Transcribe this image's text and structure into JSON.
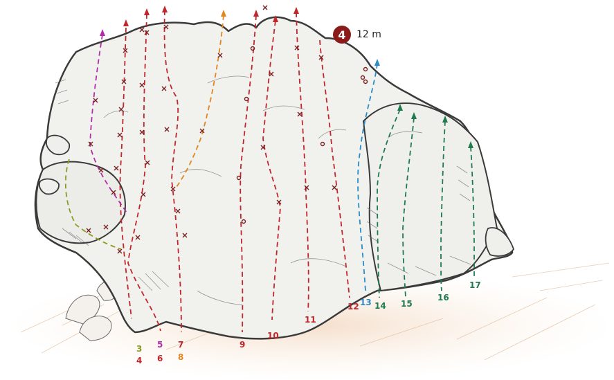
{
  "boulder": {
    "number": "4",
    "height": "12 m"
  },
  "colors": {
    "red": "#c0262b",
    "purple": "#b02fa8",
    "orange": "#e0871f",
    "olive": "#8f9a22",
    "blue": "#2a8cc6",
    "green": "#1f7a4f",
    "badge": "#8b1a1a",
    "outline": "#3a3a3a",
    "bolt": "#7a1f1f"
  },
  "routes": [
    {
      "number": "3",
      "color_key": "olive"
    },
    {
      "number": "4",
      "color_key": "red"
    },
    {
      "number": "5",
      "color_key": "purple"
    },
    {
      "number": "6",
      "color_key": "red"
    },
    {
      "number": "7",
      "color_key": "red"
    },
    {
      "number": "8",
      "color_key": "orange"
    },
    {
      "number": "9",
      "color_key": "red"
    },
    {
      "number": "10",
      "color_key": "red"
    },
    {
      "number": "11",
      "color_key": "red"
    },
    {
      "number": "12",
      "color_key": "red"
    },
    {
      "number": "13",
      "color_key": "blue"
    },
    {
      "number": "14",
      "color_key": "green"
    },
    {
      "number": "15",
      "color_key": "green"
    },
    {
      "number": "16",
      "color_key": "green"
    },
    {
      "number": "17",
      "color_key": "green"
    }
  ]
}
